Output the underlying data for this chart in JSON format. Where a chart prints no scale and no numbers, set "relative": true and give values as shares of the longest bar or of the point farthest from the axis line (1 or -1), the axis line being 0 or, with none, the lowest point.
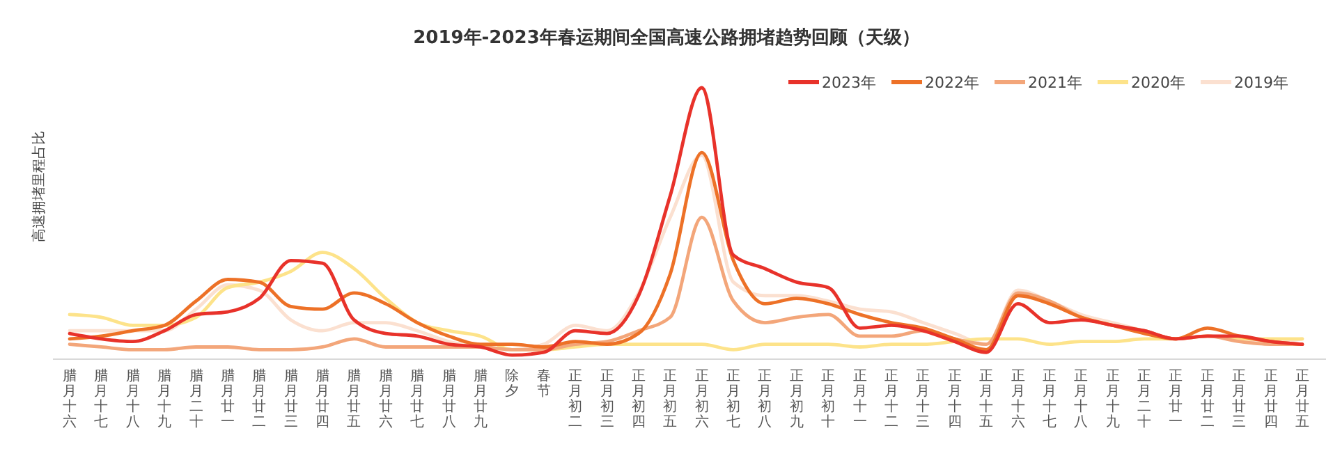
{
  "chart_data": {
    "type": "line",
    "title": "2019年-2023年春运期间全国高速公路拥堵趋势回顾（天级）",
    "ylabel": "高速拥堵里程占比",
    "relative": true,
    "legend": "top right",
    "marker": "none",
    "line_style": "solid",
    "categories": [
      "腊月十六",
      "腊月十七",
      "腊月十八",
      "腊月十九",
      "腊月二十",
      "腊月廿一",
      "腊月廿二",
      "腊月廿三",
      "腊月廿四",
      "腊月廿五",
      "腊月廿六",
      "腊月廿七",
      "腊月廿八",
      "腊月廿九",
      "除夕",
      "春节",
      "正月初二",
      "正月初三",
      "正月初四",
      "正月初五",
      "正月初六",
      "正月初七",
      "正月初八",
      "正月初九",
      "正月初十",
      "正月十一",
      "正月十二",
      "正月十三",
      "正月十四",
      "正月十五",
      "正月十六",
      "正月十七",
      "正月十八",
      "正月十九",
      "正月二十",
      "正月廿一",
      "正月廿二",
      "正月廿三",
      "正月廿四",
      "正月廿五"
    ],
    "series": [
      {
        "name": "2019年",
        "color": "#fbe0d0",
        "values": [
          0.1,
          0.1,
          0.1,
          0.1,
          0.18,
          0.27,
          0.25,
          0.14,
          0.1,
          0.13,
          0.13,
          0.1,
          0.06,
          0.04,
          0.03,
          0.05,
          0.12,
          0.1,
          0.24,
          0.52,
          0.75,
          0.28,
          0.23,
          0.23,
          0.21,
          0.18,
          0.17,
          0.13,
          0.09,
          0.05,
          0.25,
          0.21,
          0.16,
          0.13,
          0.1,
          0.07,
          0.08,
          0.07,
          0.06,
          0.07
        ]
      },
      {
        "name": "2020年",
        "color": "#fde38a",
        "values": [
          0.16,
          0.15,
          0.12,
          0.12,
          0.15,
          0.26,
          0.28,
          0.32,
          0.39,
          0.33,
          0.22,
          0.13,
          0.1,
          0.08,
          0.03,
          0.03,
          0.04,
          0.05,
          0.05,
          0.05,
          0.05,
          0.03,
          0.05,
          0.05,
          0.05,
          0.04,
          0.05,
          0.05,
          0.06,
          0.07,
          0.07,
          0.05,
          0.06,
          0.06,
          0.07,
          0.07,
          0.08,
          0.07,
          0.07,
          0.07
        ]
      },
      {
        "name": "2021年",
        "color": "#f3a67a",
        "values": [
          0.05,
          0.04,
          0.03,
          0.03,
          0.04,
          0.04,
          0.03,
          0.03,
          0.04,
          0.07,
          0.04,
          0.04,
          0.04,
          0.04,
          0.03,
          0.03,
          0.05,
          0.06,
          0.1,
          0.15,
          0.52,
          0.21,
          0.13,
          0.15,
          0.16,
          0.08,
          0.08,
          0.1,
          0.07,
          0.05,
          0.24,
          0.21,
          0.15,
          0.12,
          0.1,
          0.07,
          0.08,
          0.06,
          0.05,
          0.05
        ]
      },
      {
        "name": "2022年",
        "color": "#ed7127",
        "values": [
          0.07,
          0.08,
          0.1,
          0.12,
          0.21,
          0.29,
          0.28,
          0.19,
          0.18,
          0.24,
          0.2,
          0.13,
          0.08,
          0.05,
          0.05,
          0.04,
          0.06,
          0.05,
          0.09,
          0.31,
          0.76,
          0.36,
          0.2,
          0.22,
          0.2,
          0.16,
          0.13,
          0.11,
          0.07,
          0.03,
          0.23,
          0.2,
          0.15,
          0.12,
          0.09,
          0.07,
          0.11,
          0.08,
          0.06,
          0.05
        ]
      },
      {
        "name": "2023年",
        "color": "#e8322a",
        "values": [
          0.09,
          0.07,
          0.06,
          0.1,
          0.16,
          0.17,
          0.22,
          0.36,
          0.35,
          0.14,
          0.09,
          0.08,
          0.05,
          0.04,
          0.01,
          0.02,
          0.1,
          0.09,
          0.23,
          0.6,
          1.0,
          0.38,
          0.33,
          0.28,
          0.26,
          0.11,
          0.12,
          0.1,
          0.06,
          0.02,
          0.2,
          0.13,
          0.14,
          0.12,
          0.1,
          0.07,
          0.08,
          0.08,
          0.06,
          0.05
        ]
      }
    ]
  }
}
